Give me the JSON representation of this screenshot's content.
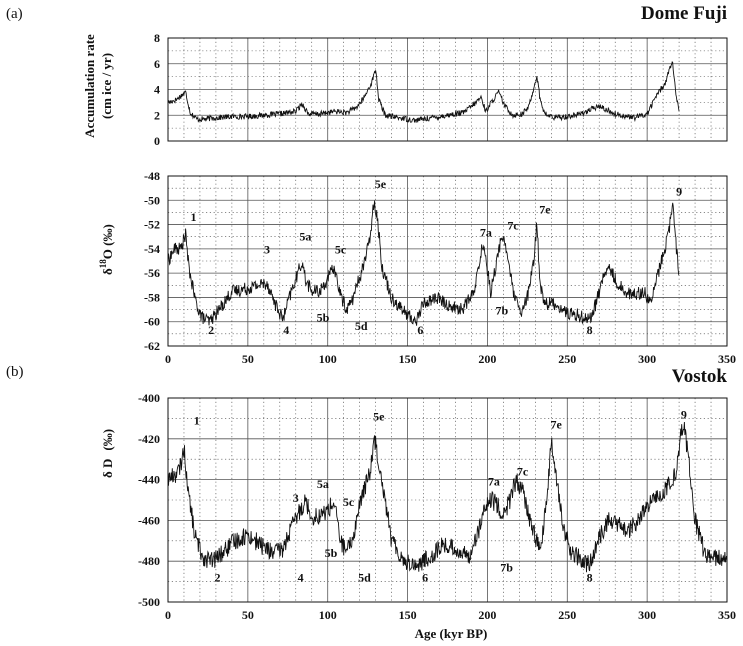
{
  "figure": {
    "panel_a_label": "(a)",
    "panel_b_label": "(b)",
    "xlabel": "Age  (kyr BP)"
  },
  "chart_data": [
    {
      "type": "line",
      "title": "Dome Fuji",
      "xlabel": "",
      "ylabel": "Accumulation rate (cm ice / yr)",
      "ylabel_lines": [
        "Accumulation rate",
        "(cm ice / yr)"
      ],
      "xlim": [
        0,
        350
      ],
      "ylim": [
        0,
        8
      ],
      "xticks": [
        0,
        50,
        100,
        150,
        200,
        250,
        300,
        350
      ],
      "yticks": [
        0,
        2,
        4,
        6,
        8
      ],
      "grid": true,
      "x": [
        0,
        5,
        9,
        11,
        14,
        18,
        22,
        30,
        40,
        50,
        60,
        70,
        80,
        84,
        88,
        95,
        105,
        112,
        118,
        123,
        128,
        130,
        132,
        136,
        145,
        155,
        165,
        175,
        185,
        192,
        196,
        199,
        203,
        207,
        211,
        216,
        222,
        226,
        229,
        231,
        233,
        236,
        242,
        250,
        258,
        264,
        270,
        280,
        292,
        300,
        306,
        311,
        314,
        316,
        318,
        320
      ],
      "y": [
        3.0,
        3.2,
        3.6,
        3.8,
        2.2,
        1.7,
        1.7,
        1.8,
        1.9,
        1.9,
        2.0,
        2.1,
        2.3,
        2.9,
        2.1,
        2.1,
        2.3,
        2.2,
        2.6,
        3.4,
        4.7,
        5.6,
        3.2,
        2.0,
        1.8,
        1.6,
        1.8,
        2.0,
        2.2,
        2.9,
        3.4,
        2.3,
        3.1,
        3.8,
        2.7,
        2.0,
        2.1,
        2.7,
        4.1,
        5.1,
        3.2,
        2.1,
        1.8,
        1.9,
        2.1,
        2.4,
        2.7,
        2.1,
        1.8,
        2.1,
        3.6,
        4.4,
        5.6,
        6.1,
        3.5,
        2.3
      ],
      "noise": 0.22
    },
    {
      "type": "line",
      "title": "",
      "xlabel": "Age  (kyr BP)",
      "ylabel": "δ 18O (‰)",
      "ylabel_main": "δ",
      "ylabel_sup": "18",
      "ylabel_rest": "O  (‰)",
      "xlim": [
        0,
        350
      ],
      "ylim": [
        -62,
        -48
      ],
      "xticks": [
        0,
        50,
        100,
        150,
        200,
        250,
        300,
        350
      ],
      "yticks": [
        -62,
        -60,
        -58,
        -56,
        -54,
        -52,
        -50,
        -48
      ],
      "grid": true,
      "x": [
        0,
        4,
        8,
        11,
        13,
        17,
        21,
        26,
        32,
        40,
        48,
        56,
        62,
        68,
        72,
        76,
        80,
        84,
        86,
        90,
        95,
        100,
        104,
        108,
        112,
        116,
        122,
        126,
        129,
        131,
        134,
        140,
        148,
        155,
        160,
        168,
        176,
        184,
        192,
        196,
        198,
        202,
        206,
        209,
        212,
        216,
        221,
        226,
        229,
        231,
        233,
        236,
        242,
        250,
        258,
        264,
        268,
        272,
        276,
        282,
        290,
        298,
        302,
        306,
        312,
        315,
        316,
        318,
        320
      ],
      "y": [
        -55,
        -54,
        -54,
        -52.8,
        -55.5,
        -58.2,
        -59.6,
        -60,
        -59,
        -57.5,
        -57.3,
        -57,
        -56.8,
        -58.8,
        -59.8,
        -58,
        -56.5,
        -55,
        -56.5,
        -57.5,
        -57.5,
        -56.5,
        -55.5,
        -57.8,
        -59,
        -58,
        -55.5,
        -53.5,
        -50,
        -51.3,
        -55.5,
        -58,
        -59.2,
        -60,
        -58.5,
        -58,
        -58.7,
        -59,
        -57.5,
        -54.2,
        -53.8,
        -57.5,
        -55,
        -52.8,
        -54,
        -57.5,
        -59.5,
        -57.5,
        -55,
        -51.8,
        -57,
        -58.5,
        -58.5,
        -59.3,
        -59.5,
        -59.8,
        -58.5,
        -56.5,
        -55.5,
        -57,
        -57.8,
        -57.5,
        -58.5,
        -56.5,
        -53.5,
        -51.5,
        -50,
        -53.5,
        -56
      ],
      "noise": 0.55,
      "annotations": [
        {
          "label": "1",
          "x": 16,
          "y": -51.7
        },
        {
          "label": "2",
          "x": 27,
          "y": -61.0
        },
        {
          "label": "3",
          "x": 62,
          "y": -54.4
        },
        {
          "label": "4",
          "x": 74,
          "y": -61.0
        },
        {
          "label": "5a",
          "x": 86,
          "y": -53.3
        },
        {
          "label": "5b",
          "x": 97,
          "y": -60.0
        },
        {
          "label": "5c",
          "x": 108,
          "y": -54.4
        },
        {
          "label": "5d",
          "x": 121,
          "y": -60.7
        },
        {
          "label": "5e",
          "x": 133,
          "y": -49.0
        },
        {
          "label": "6",
          "x": 158,
          "y": -61.0
        },
        {
          "label": "7a",
          "x": 199,
          "y": -53.0
        },
        {
          "label": "7b",
          "x": 209,
          "y": -59.4
        },
        {
          "label": "7c",
          "x": 216,
          "y": -52.4
        },
        {
          "label": "7e",
          "x": 236,
          "y": -51.1
        },
        {
          "label": "8",
          "x": 264,
          "y": -61.0
        },
        {
          "label": "9",
          "x": 320,
          "y": -49.6
        }
      ]
    },
    {
      "type": "line",
      "title": "Vostok",
      "xlabel": "Age  (kyr BP)",
      "ylabel": "δ D (‰)",
      "ylabel_main": "δ D",
      "ylabel_rest": "(‰)",
      "xlim": [
        0,
        350
      ],
      "ylim": [
        -500,
        -400
      ],
      "xticks": [
        0,
        50,
        100,
        150,
        200,
        250,
        300,
        350
      ],
      "yticks": [
        -500,
        -480,
        -460,
        -440,
        -420,
        -400
      ],
      "grid": true,
      "x": [
        0,
        3,
        7,
        10,
        13,
        17,
        22,
        28,
        34,
        42,
        50,
        58,
        66,
        72,
        77,
        82,
        86,
        90,
        95,
        100,
        104,
        108,
        112,
        116,
        120,
        124,
        127,
        129,
        131,
        134,
        140,
        148,
        156,
        164,
        172,
        180,
        188,
        194,
        198,
        202,
        206,
        210,
        214,
        218,
        222,
        226,
        230,
        233,
        237,
        240,
        243,
        247,
        252,
        258,
        262,
        266,
        270,
        276,
        282,
        288,
        294,
        300,
        306,
        312,
        318,
        321,
        323,
        326,
        330,
        336,
        342,
        350
      ],
      "y": [
        -440,
        -438,
        -436,
        -425,
        -448,
        -468,
        -478,
        -480,
        -476,
        -470,
        -467,
        -472,
        -476,
        -474,
        -464,
        -456,
        -450,
        -458,
        -458,
        -455,
        -451,
        -470,
        -476,
        -468,
        -452,
        -442,
        -435,
        -418,
        -427,
        -440,
        -470,
        -480,
        -482,
        -478,
        -472,
        -474,
        -478,
        -466,
        -456,
        -450,
        -452,
        -458,
        -450,
        -440,
        -446,
        -458,
        -468,
        -475,
        -452,
        -422,
        -437,
        -462,
        -475,
        -479,
        -482,
        -479,
        -468,
        -460,
        -462,
        -466,
        -460,
        -454,
        -448,
        -445,
        -436,
        -418,
        -414,
        -430,
        -460,
        -476,
        -478,
        -480
      ],
      "noise": 4.5,
      "annotations": [
        {
          "label": "1",
          "x": 18,
          "y": -413
        },
        {
          "label": "2",
          "x": 31,
          "y": -490
        },
        {
          "label": "3",
          "x": 80,
          "y": -451
        },
        {
          "label": "4",
          "x": 83,
          "y": -490
        },
        {
          "label": "5a",
          "x": 97,
          "y": -444
        },
        {
          "label": "5b",
          "x": 102,
          "y": -478
        },
        {
          "label": "5c",
          "x": 113,
          "y": -453
        },
        {
          "label": "5d",
          "x": 123,
          "y": -490
        },
        {
          "label": "5e",
          "x": 132,
          "y": -411
        },
        {
          "label": "6",
          "x": 161,
          "y": -490
        },
        {
          "label": "7a",
          "x": 204,
          "y": -443
        },
        {
          "label": "7b",
          "x": 212,
          "y": -485
        },
        {
          "label": "7c",
          "x": 222,
          "y": -438
        },
        {
          "label": "7e",
          "x": 243,
          "y": -415
        },
        {
          "label": "8",
          "x": 264,
          "y": -490
        },
        {
          "label": "9",
          "x": 323,
          "y": -410
        }
      ]
    }
  ]
}
